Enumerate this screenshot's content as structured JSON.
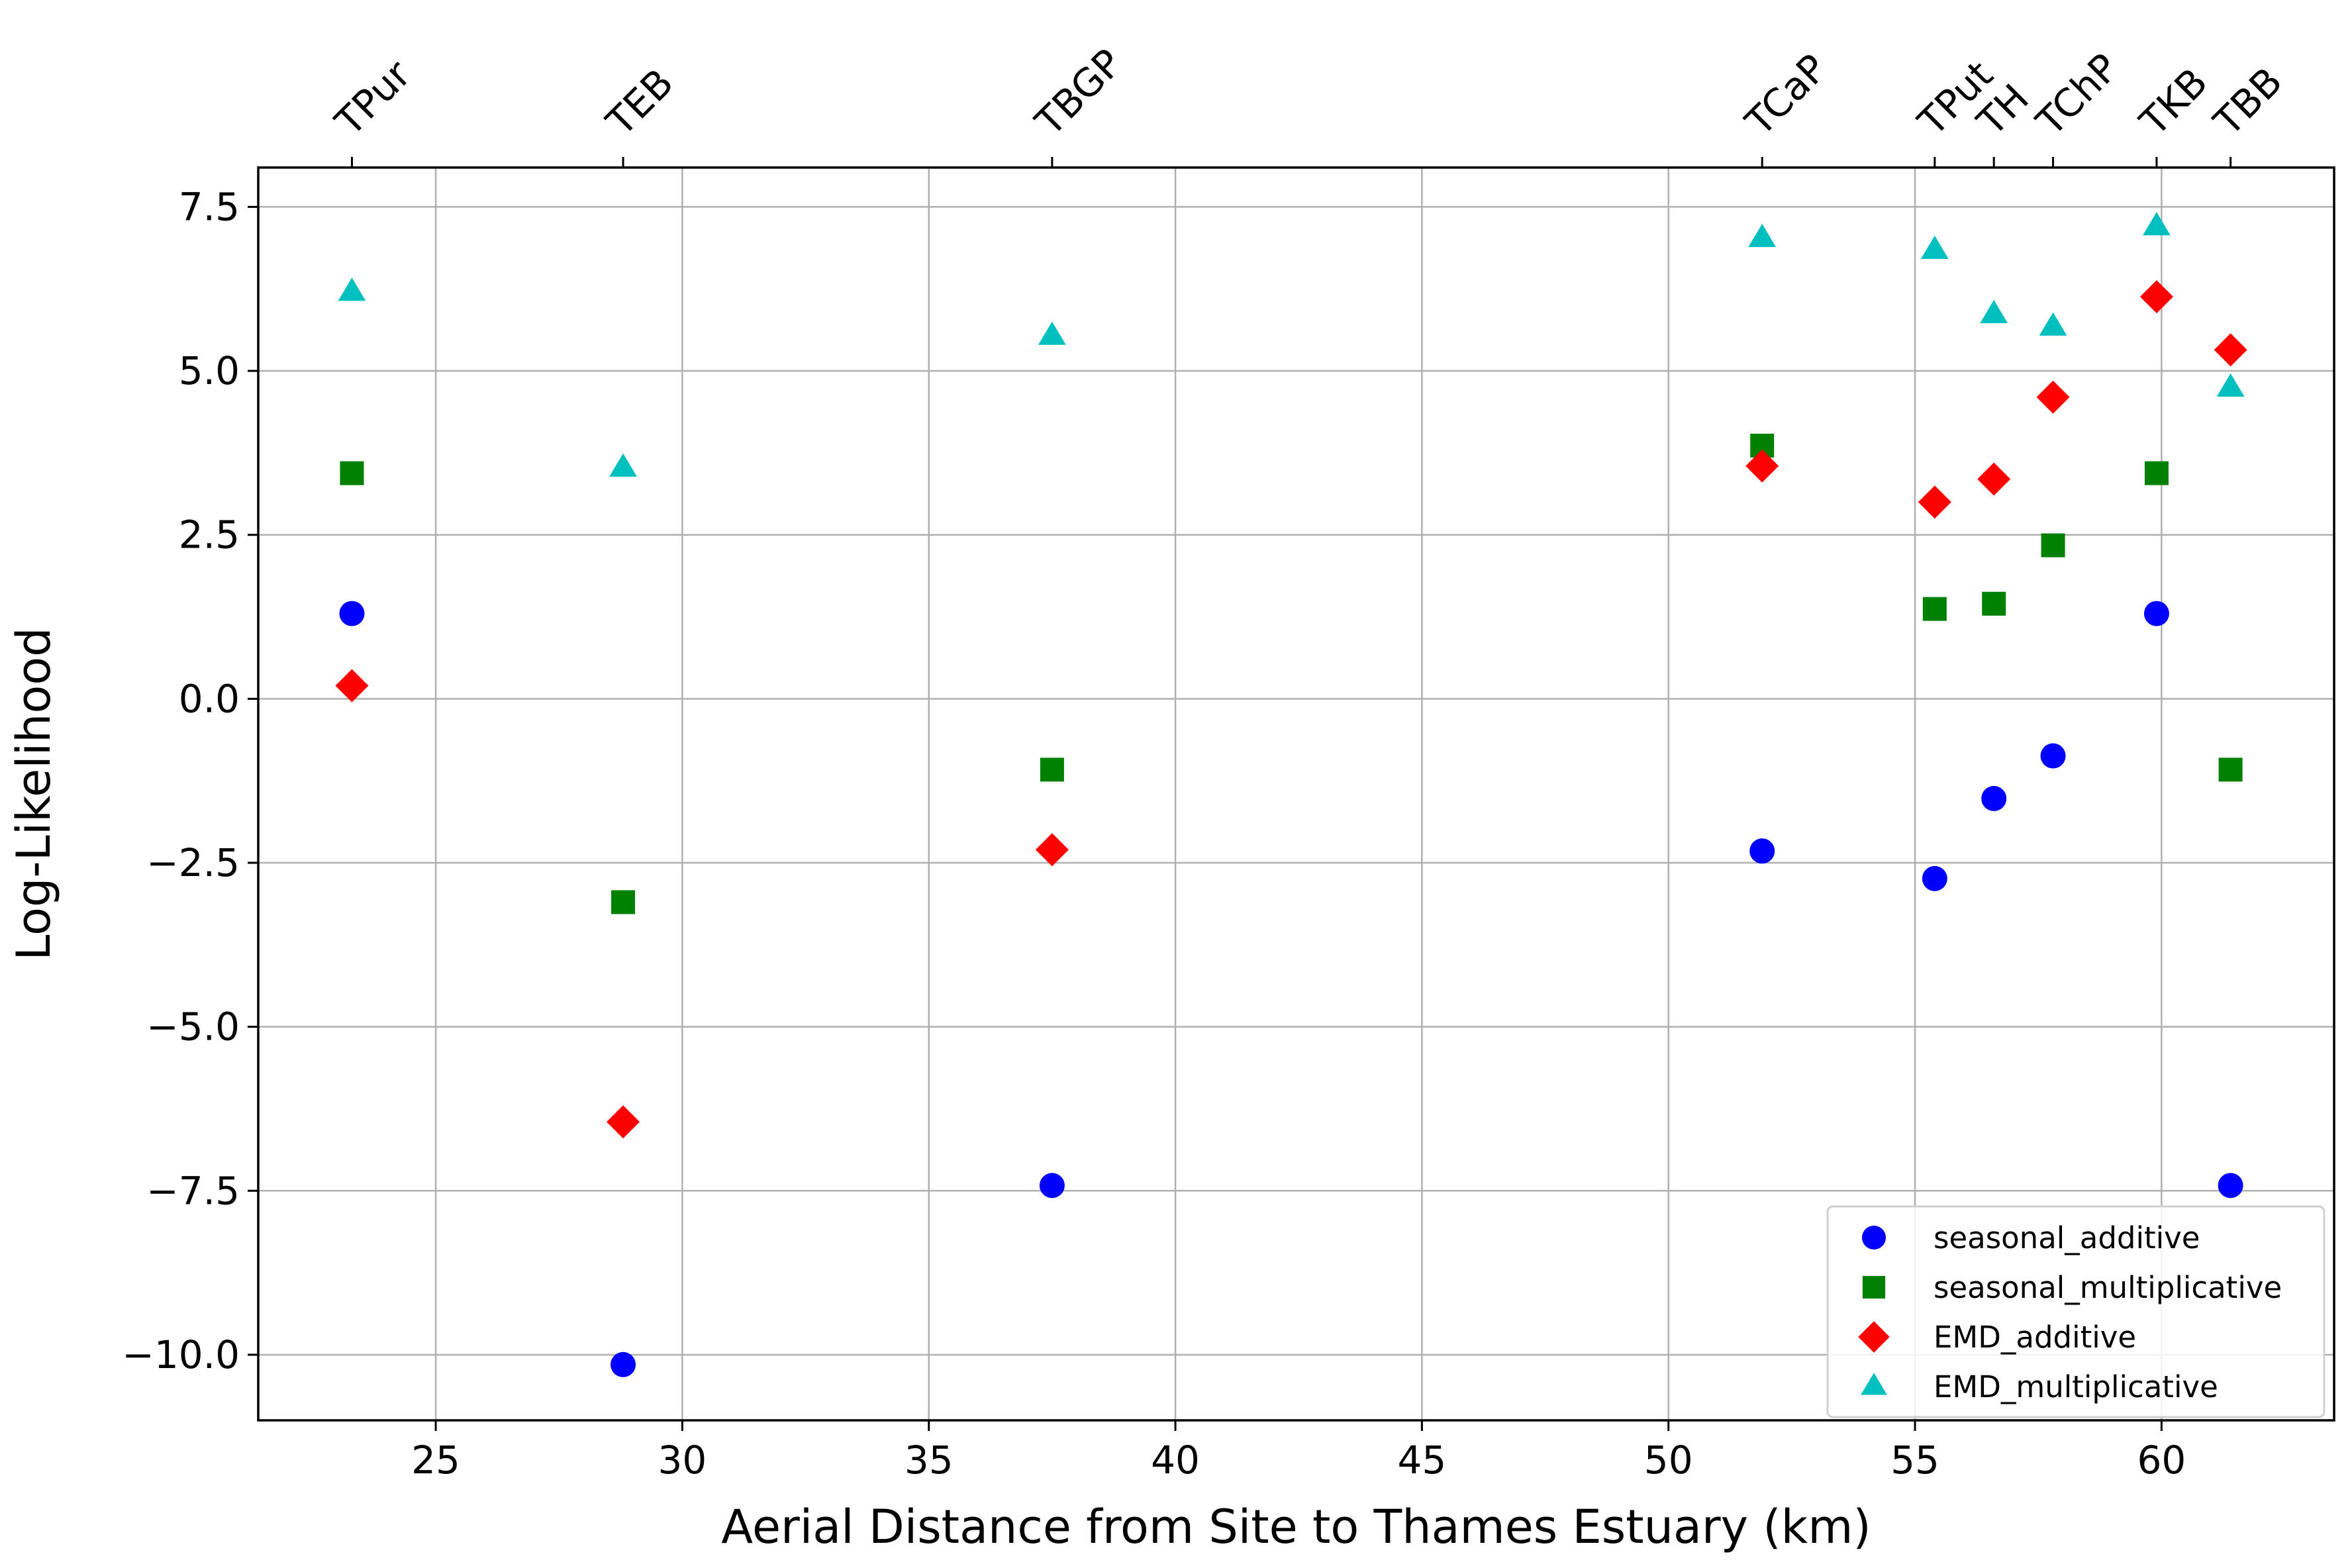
{
  "chart_data": {
    "type": "scatter",
    "xlabel": "Aerial Distance from Site to Thames Estuary (km)",
    "ylabel": "Log-Likelihood",
    "xlim": [
      21.4,
      63.5
    ],
    "ylim": [
      -11.0,
      8.1
    ],
    "grid": true,
    "legend_position": "lower-right",
    "x_ticks": [
      {
        "value": 25,
        "label": "25"
      },
      {
        "value": 30,
        "label": "30"
      },
      {
        "value": 35,
        "label": "35"
      },
      {
        "value": 40,
        "label": "40"
      },
      {
        "value": 45,
        "label": "45"
      },
      {
        "value": 50,
        "label": "50"
      },
      {
        "value": 55,
        "label": "55"
      },
      {
        "value": 60,
        "label": "60"
      }
    ],
    "y_ticks": [
      {
        "value": 7.5,
        "label": "7.5"
      },
      {
        "value": 5.0,
        "label": "5.0"
      },
      {
        "value": 2.5,
        "label": "2.5"
      },
      {
        "value": 0.0,
        "label": "0.0"
      },
      {
        "value": -2.5,
        "label": "−2.5"
      },
      {
        "value": -5.0,
        "label": "−5.0"
      },
      {
        "value": -7.5,
        "label": "−7.5"
      },
      {
        "value": -10.0,
        "label": "−10.0"
      }
    ],
    "sites": [
      {
        "name": "TPur",
        "x": 23.3
      },
      {
        "name": "TEB",
        "x": 28.8
      },
      {
        "name": "TBGP",
        "x": 37.5
      },
      {
        "name": "TCaP",
        "x": 51.9
      },
      {
        "name": "TPut",
        "x": 55.4
      },
      {
        "name": "TH",
        "x": 56.6
      },
      {
        "name": "TChP",
        "x": 57.8
      },
      {
        "name": "TKB",
        "x": 59.9
      },
      {
        "name": "TBB",
        "x": 61.4
      }
    ],
    "series": [
      {
        "name": "seasonal_additive",
        "marker": "circle",
        "color": "#0000ff",
        "x": [
          23.3,
          28.8,
          37.5,
          51.9,
          55.4,
          56.6,
          57.8,
          59.9,
          61.4
        ],
        "y": [
          1.3,
          -10.15,
          -7.42,
          -2.32,
          -2.74,
          -1.52,
          -0.87,
          1.3,
          -7.42
        ]
      },
      {
        "name": "seasonal_multiplicative",
        "marker": "square",
        "color": "#008000",
        "x": [
          23.3,
          28.8,
          37.5,
          51.9,
          55.4,
          56.6,
          57.8,
          59.9,
          61.4
        ],
        "y": [
          3.44,
          -3.1,
          -1.08,
          3.86,
          1.37,
          1.45,
          2.34,
          3.44,
          -1.08
        ]
      },
      {
        "name": "EMD_additive",
        "marker": "diamond",
        "color": "#ff0000",
        "x": [
          23.3,
          28.8,
          37.5,
          51.9,
          55.4,
          56.6,
          57.8,
          59.9,
          61.4
        ],
        "y": [
          0.2,
          -6.45,
          -2.3,
          3.55,
          3.0,
          3.35,
          4.6,
          6.13,
          5.32
        ]
      },
      {
        "name": "EMD_multiplicative",
        "marker": "triangle",
        "color": "#00bfbf",
        "x": [
          23.3,
          28.8,
          37.5,
          51.9,
          55.4,
          56.6,
          57.8,
          59.9,
          61.4
        ],
        "y": [
          6.2,
          3.52,
          5.53,
          7.02,
          6.84,
          5.86,
          5.67,
          7.2,
          4.74
        ]
      }
    ]
  }
}
